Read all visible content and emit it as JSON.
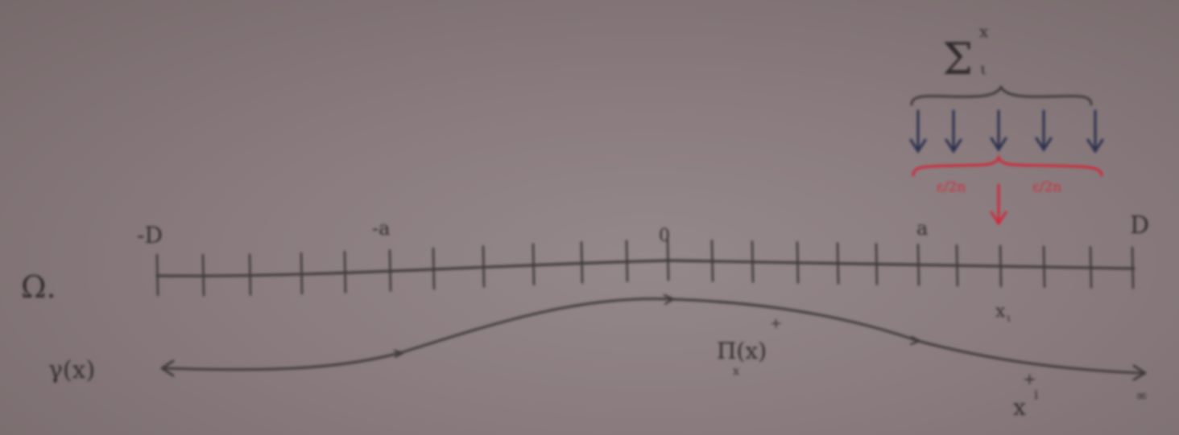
{
  "labels": {
    "omega": "Ω.",
    "gamma": "γ(x)",
    "sigma": "Σ",
    "sigma_sup": "x",
    "sigma_sub": "ι",
    "tick_neg_d": "-D",
    "tick_neg_a": "-a",
    "tick_zero": "0",
    "tick_a": "a",
    "tick_d": "D",
    "tick_xi": "x",
    "tick_xi_sub": "ι",
    "pi_label": "Π(x)",
    "pi_sub": "x",
    "pi_sup": "+",
    "x_end": "x",
    "x_end_sup": "+",
    "x_end_sup2": "i",
    "arrow_end": "∞",
    "red_left": "ε/2n",
    "red_right": "ε/2n"
  },
  "colors": {
    "paper": "#8a7c7e",
    "pencil": "#3f3a3d",
    "blue_ink": "#2e3350",
    "red_ink": "#d0283a"
  }
}
